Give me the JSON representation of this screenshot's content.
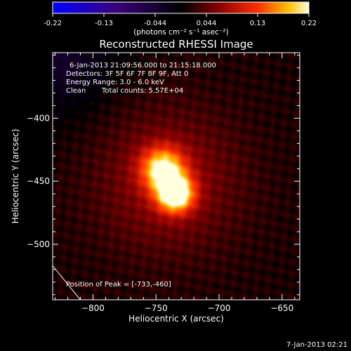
{
  "chart_data": {
    "type": "heatmap",
    "title": "Reconstructed RHESSI Image",
    "xlabel": "Heliocentric X (arcsec)",
    "ylabel": "Heliocentric Y (arcsec)",
    "xlim": [
      -832,
      -636
    ],
    "ylim": [
      -544,
      -348
    ],
    "xticks": [
      -800,
      -750,
      -700,
      -650
    ],
    "yticks": [
      -400,
      -450,
      -500
    ],
    "colorbar": {
      "range": [
        -0.22,
        0.22
      ],
      "ticks": [
        "-0.22",
        "-0.13",
        "-0.044",
        "0.044",
        "0.13",
        "0.22"
      ],
      "label": "(photons cm⁻² s⁻¹ asec⁻²)"
    },
    "sources": [
      {
        "x": -745,
        "y": -440,
        "sigma": 12,
        "peak": 0.17
      },
      {
        "x": -735,
        "y": -460,
        "sigma": 10,
        "peak": 0.22
      },
      {
        "x": -741,
        "y": -450,
        "sigma": 40,
        "peak": 0.06
      }
    ],
    "background_level": 0.012,
    "limb_line": [
      [
        -832,
        -517
      ],
      [
        -810,
        -544
      ]
    ],
    "info": {
      "time_range": "6-Jan-2013 21:09:56.000 to 21:15:18.000",
      "detectors": "Detectors: 3F 5F 6F 7F 8F 9F, Att 0",
      "energy": "Energy Range: 3.0 - 6.0 keV",
      "method": "Clean",
      "counts": "Total counts: 5.57E+04",
      "peak": "Position of Peak = [-733,-460]"
    },
    "timestamp": "7-Jan-2013 02:21"
  }
}
